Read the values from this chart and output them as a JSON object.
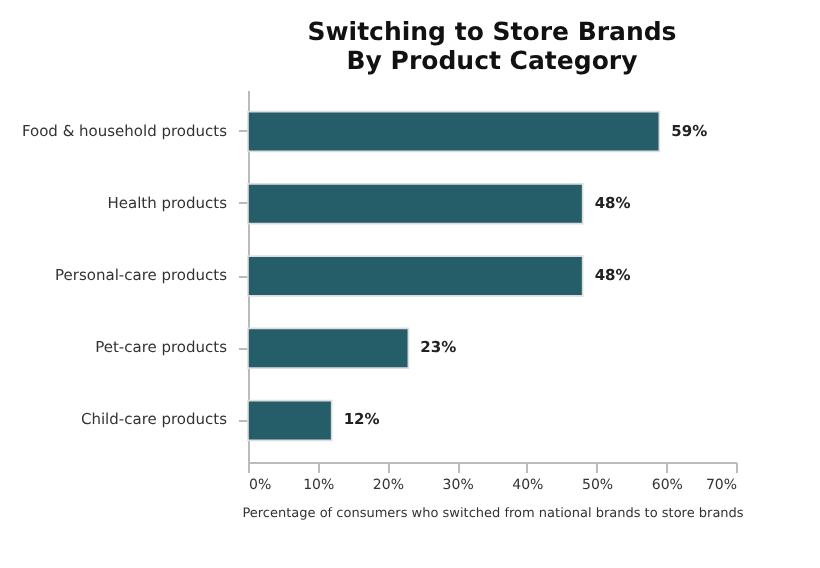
{
  "chart_data": {
    "type": "bar",
    "orientation": "horizontal",
    "title": [
      "Switching to Store Brands",
      "By Product Category"
    ],
    "xlabel": "Percentage of consumers who switched from national brands to store brands",
    "categories": [
      "Food & household products",
      "Health products",
      "Personal-care products",
      "Pet-care products",
      "Child-care products"
    ],
    "values": [
      59,
      48,
      48,
      23,
      12
    ],
    "value_labels": [
      "59%",
      "48%",
      "48%",
      "23%",
      "12%"
    ],
    "color": "#255d68",
    "xlim": [
      0,
      70
    ],
    "xticks": [
      {
        "value": 0,
        "label": "0%"
      },
      {
        "value": 10,
        "label": "10%"
      },
      {
        "value": 20,
        "label": "20%"
      },
      {
        "value": 30,
        "label": "30%"
      },
      {
        "value": 40,
        "label": "40%"
      },
      {
        "value": 50,
        "label": "50%"
      },
      {
        "value": 60,
        "label": "60%"
      },
      {
        "value": 70,
        "label": "70%"
      }
    ],
    "grid": false
  }
}
